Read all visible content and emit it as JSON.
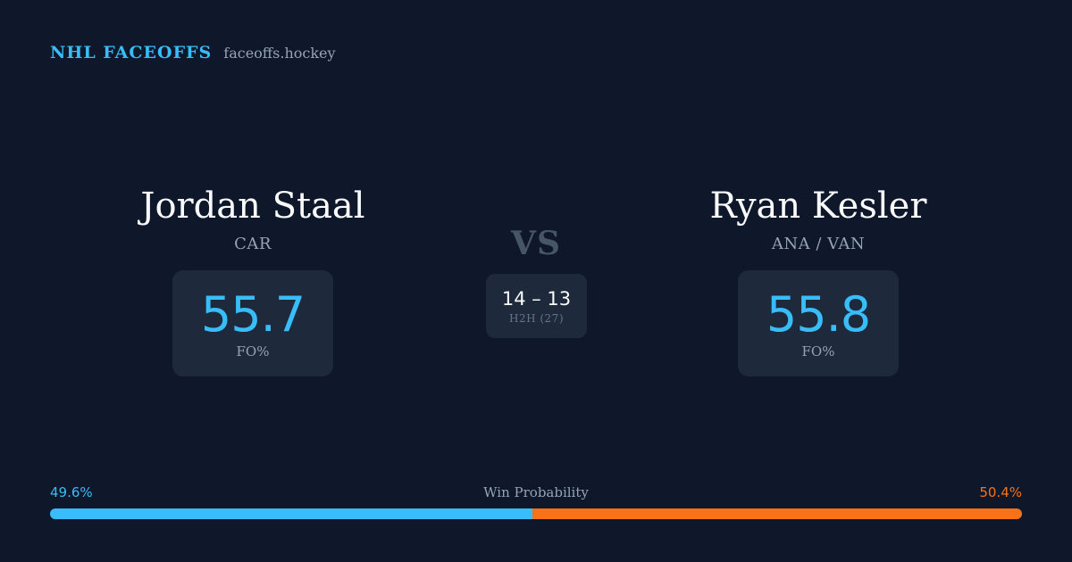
{
  "brand": {
    "name": "NHL FACEOFFS",
    "domain": "faceoffs.hockey"
  },
  "player_left": {
    "name": "Jordan Staal",
    "team": "CAR",
    "stat_value": "55.7",
    "stat_label": "FO%"
  },
  "player_right": {
    "name": "Ryan Kesler",
    "team": "ANA / VAN",
    "stat_value": "55.8",
    "stat_label": "FO%"
  },
  "matchup": {
    "vs_label": "VS",
    "h2h_score": "14 – 13",
    "h2h_label": "H2H (27)"
  },
  "win_probability": {
    "title": "Win Probability",
    "left_label": "49.6%",
    "right_label": "50.4%",
    "left_value": 49.6,
    "right_value": 50.4,
    "left_color": "#38bdf8",
    "right_color": "#f97316"
  }
}
